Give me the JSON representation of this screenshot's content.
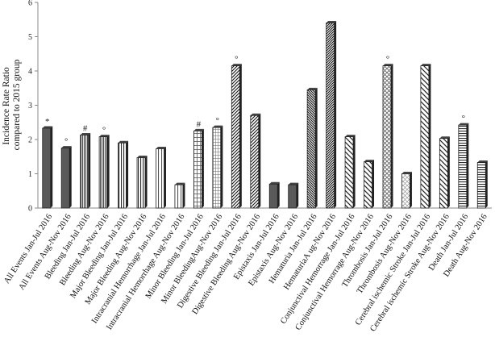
{
  "chart_data": {
    "type": "bar",
    "ylabel": "Incidence Rate Ratio compared to 2015 group",
    "ylim": [
      0,
      6
    ],
    "yticks": [
      0,
      1,
      2,
      3,
      4,
      5,
      6
    ],
    "grid": false,
    "legend": "none",
    "categories": [
      "All Events  Jan-Jul 2016",
      "All Events  Aug-Nov 2016",
      "Bleeding  Jan-Jul 2016",
      "Bleeding  Aug-Nov 2016",
      "Major Bleeding  Jan-Jul 2016",
      "Major Bleeding  Aug-Nov 2016",
      "Intracranial  Hemorrhage  Jan-Jul 2016",
      "Intracranial  Hemorrhage  Aug-Nov 2016",
      "Minor Bleeding  Jan-Jul 2016",
      "Minor BleedingAug-Nov 2016",
      "Digestive  Bleeding  Jan-Jul 2016",
      "Digestive  Bleeding  Aug-Nov 2016",
      "Epistaxis  Jan-Jul 2016",
      "Epistaxis  Aug-Nov 2016",
      "Hematuria  Jan-Jul 2016",
      "HematuriaA  ug-Nov 2016",
      "Conjunctival  Hemorrage  Jan-Jul 2016",
      "Conjunctival  Hemorrage  Aug-Nov 2016",
      "Thrombosis  Jan-Jul 2016",
      "Thrombosis  Aug-Nov 2016",
      "Cerebral ischemic  Stroke  Jan-Jul 2016",
      "Cerebral ischemic  Stroke  Aug-Nov 2016",
      "Death  Jan-Jul 2016",
      "Death  Aug-Nov 2016"
    ],
    "values": [
      2.33,
      1.75,
      2.13,
      2.08,
      1.9,
      1.47,
      1.73,
      0.68,
      2.25,
      2.35,
      4.15,
      2.7,
      0.7,
      0.68,
      3.45,
      5.4,
      2.08,
      1.35,
      4.15,
      1.0,
      4.15,
      2.03,
      2.42,
      1.33
    ],
    "patterns": [
      "solid",
      "solid",
      "vlines-dense",
      "vlines-dense",
      "vlines",
      "vlines",
      "vlines-sparse",
      "vlines-sparse",
      "grid",
      "grid-fine",
      "diag-left",
      "diag-left",
      "solid",
      "solid",
      "diag-right-dense",
      "diag-left-dense",
      "diag-right-light",
      "diag-right-light",
      "crosshatch",
      "crosshatch-light",
      "diag-right-light",
      "diag-right-light",
      "hlines",
      "hlines"
    ],
    "annotations": [
      "*",
      "°",
      "#",
      "°",
      "",
      "",
      "",
      "",
      "#",
      "°",
      "°",
      "",
      "",
      "",
      "",
      "",
      "",
      "",
      "°",
      "",
      "",
      "",
      "°",
      ""
    ]
  }
}
